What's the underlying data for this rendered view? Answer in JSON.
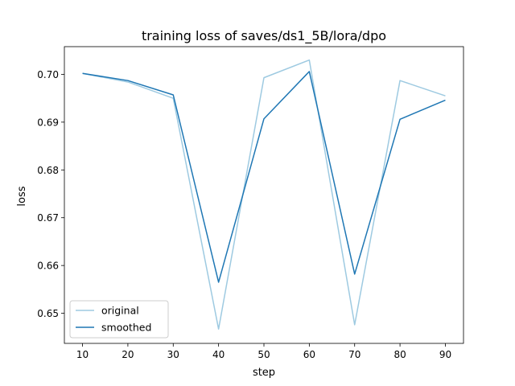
{
  "chart_data": {
    "type": "line",
    "title": "training loss of saves/ds1_5B/lora/dpo",
    "xlabel": "step",
    "ylabel": "loss",
    "x": [
      10,
      20,
      30,
      40,
      50,
      60,
      70,
      80,
      90
    ],
    "xlim": [
      6,
      94
    ],
    "ylim": [
      0.6437,
      0.7058
    ],
    "xticks": [
      10,
      20,
      30,
      40,
      50,
      60,
      70,
      80,
      90
    ],
    "yticks": [
      0.65,
      0.66,
      0.67,
      0.68,
      0.69,
      0.7
    ],
    "ytick_labels": [
      "0.65",
      "0.66",
      "0.67",
      "0.68",
      "0.69",
      "0.70"
    ],
    "grid": false,
    "legend_position": "lower-left",
    "series": [
      {
        "name": "original",
        "color": "#9ecae1",
        "values": [
          0.7002,
          0.6984,
          0.695,
          0.6467,
          0.6993,
          0.703,
          0.6476,
          0.6987,
          0.6955
        ]
      },
      {
        "name": "smoothed",
        "color": "#1f77b4",
        "values": [
          0.7002,
          0.6987,
          0.6957,
          0.6565,
          0.6907,
          0.7006,
          0.6582,
          0.6906,
          0.6946
        ]
      }
    ]
  }
}
